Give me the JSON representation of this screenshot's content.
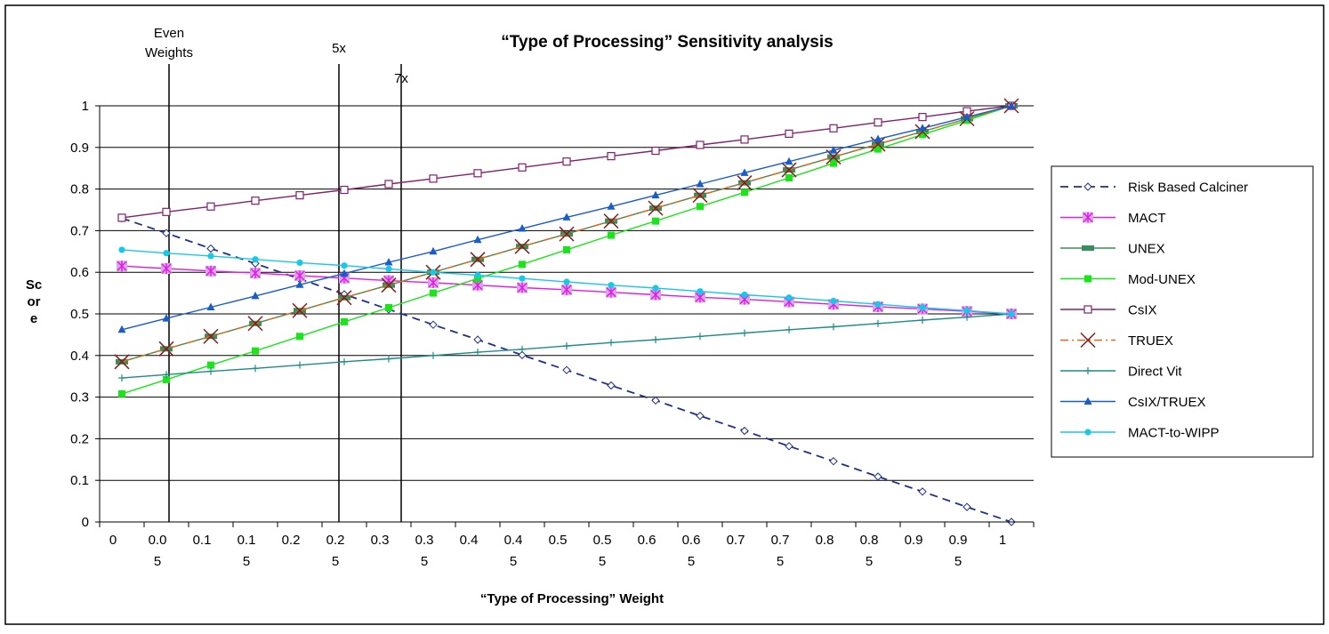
{
  "chart_data": {
    "type": "line",
    "title": "“Type of Processing” Sensitivity analysis",
    "xlabel": "“Type of Processing” Weight",
    "ylabel_lines": [
      "Sc",
      "or",
      "e"
    ],
    "ylim": [
      0,
      1
    ],
    "y_ticks": [
      "0",
      "0.1",
      "0.2",
      "0.3",
      "0.4",
      "0.5",
      "0.6",
      "0.7",
      "0.8",
      "0.9",
      "1"
    ],
    "x_tick_labels": [
      [
        "0"
      ],
      [
        "0.0",
        "5"
      ],
      [
        "0.1"
      ],
      [
        "0.1",
        "5"
      ],
      [
        "0.2"
      ],
      [
        "0.2",
        "5"
      ],
      [
        "0.3"
      ],
      [
        "0.3",
        "5"
      ],
      [
        "0.4"
      ],
      [
        "0.4",
        "5"
      ],
      [
        "0.5"
      ],
      [
        "0.5",
        "5"
      ],
      [
        "0.6"
      ],
      [
        "0.6",
        "5"
      ],
      [
        "0.7"
      ],
      [
        "0.7",
        "5"
      ],
      [
        "0.8"
      ],
      [
        "0.8",
        "5"
      ],
      [
        "0.9"
      ],
      [
        "0.9",
        "5"
      ],
      [
        "1"
      ]
    ],
    "x": [
      0,
      0.05,
      0.1,
      0.15,
      0.2,
      0.25,
      0.3,
      0.35,
      0.4,
      0.45,
      0.5,
      0.55,
      0.6,
      0.65,
      0.7,
      0.75,
      0.8,
      0.85,
      0.9,
      0.95,
      1
    ],
    "grid": true,
    "legend_position": "right",
    "annotations": [
      {
        "text_lines": [
          "Even",
          "Weights"
        ],
        "x": 0.053
      },
      {
        "text_lines": [
          "5x"
        ],
        "x": 0.244
      },
      {
        "text_lines": [
          "7x"
        ],
        "x": 0.314
      }
    ],
    "series": [
      {
        "name": "Risk Based Calciner",
        "color": "#1f2f8a",
        "marker": "diamond-open",
        "dash": "dashed",
        "values": [
          0.73,
          0.694,
          0.657,
          0.621,
          0.584,
          0.547,
          0.511,
          0.474,
          0.438,
          0.401,
          0.365,
          0.328,
          0.292,
          0.255,
          0.219,
          0.182,
          0.146,
          0.109,
          0.073,
          0.036,
          0.0
        ]
      },
      {
        "name": "MACT",
        "color": "#e619e6",
        "marker": "asterisk-box",
        "dash": "solid",
        "values": [
          0.615,
          0.609,
          0.603,
          0.598,
          0.592,
          0.586,
          0.58,
          0.575,
          0.569,
          0.563,
          0.558,
          0.552,
          0.546,
          0.54,
          0.535,
          0.529,
          0.523,
          0.517,
          0.512,
          0.506,
          0.5
        ]
      },
      {
        "name": "UNEX",
        "color": "#3a8c5a",
        "marker": "bar",
        "dash": "solid",
        "values": [
          0.385,
          0.416,
          0.446,
          0.477,
          0.508,
          0.539,
          0.569,
          0.6,
          0.631,
          0.662,
          0.692,
          0.723,
          0.754,
          0.785,
          0.815,
          0.846,
          0.877,
          0.908,
          0.938,
          0.969,
          1.0
        ]
      },
      {
        "name": "Mod-UNEX",
        "color": "#19e619",
        "marker": "square",
        "dash": "solid",
        "values": [
          0.308,
          0.342,
          0.377,
          0.411,
          0.446,
          0.481,
          0.515,
          0.55,
          0.585,
          0.619,
          0.654,
          0.689,
          0.723,
          0.758,
          0.792,
          0.827,
          0.862,
          0.896,
          0.931,
          0.965,
          1.0
        ]
      },
      {
        "name": "CsIX",
        "color": "#80206e",
        "marker": "square-open",
        "dash": "solid",
        "values": [
          0.731,
          0.745,
          0.758,
          0.772,
          0.785,
          0.798,
          0.812,
          0.825,
          0.838,
          0.852,
          0.866,
          0.879,
          0.892,
          0.906,
          0.919,
          0.933,
          0.946,
          0.96,
          0.973,
          0.987,
          1.0
        ]
      },
      {
        "name": "TRUEX",
        "color": "#e06a1a",
        "marker": "x",
        "dash": "dashdot",
        "values": [
          0.385,
          0.416,
          0.446,
          0.477,
          0.508,
          0.539,
          0.569,
          0.6,
          0.631,
          0.662,
          0.692,
          0.723,
          0.754,
          0.785,
          0.815,
          0.846,
          0.877,
          0.908,
          0.938,
          0.969,
          1.0
        ]
      },
      {
        "name": "Direct Vit",
        "color": "#1f8a8a",
        "marker": "plus",
        "dash": "solid",
        "values": [
          0.346,
          0.354,
          0.362,
          0.369,
          0.377,
          0.385,
          0.392,
          0.4,
          0.408,
          0.415,
          0.423,
          0.431,
          0.438,
          0.446,
          0.454,
          0.462,
          0.469,
          0.477,
          0.485,
          0.492,
          0.5
        ]
      },
      {
        "name": "CsIX/TRUEX",
        "color": "#1a5cc8",
        "marker": "triangle",
        "dash": "solid",
        "values": [
          0.462,
          0.489,
          0.516,
          0.543,
          0.57,
          0.597,
          0.624,
          0.65,
          0.678,
          0.705,
          0.732,
          0.758,
          0.785,
          0.812,
          0.839,
          0.866,
          0.893,
          0.92,
          0.946,
          0.973,
          1.0
        ]
      },
      {
        "name": "MACT-to-WIPP",
        "color": "#19c8e6",
        "marker": "circle",
        "dash": "solid",
        "values": [
          0.654,
          0.646,
          0.639,
          0.631,
          0.623,
          0.616,
          0.608,
          0.6,
          0.593,
          0.585,
          0.577,
          0.569,
          0.562,
          0.554,
          0.546,
          0.539,
          0.531,
          0.523,
          0.515,
          0.508,
          0.5
        ]
      }
    ]
  }
}
